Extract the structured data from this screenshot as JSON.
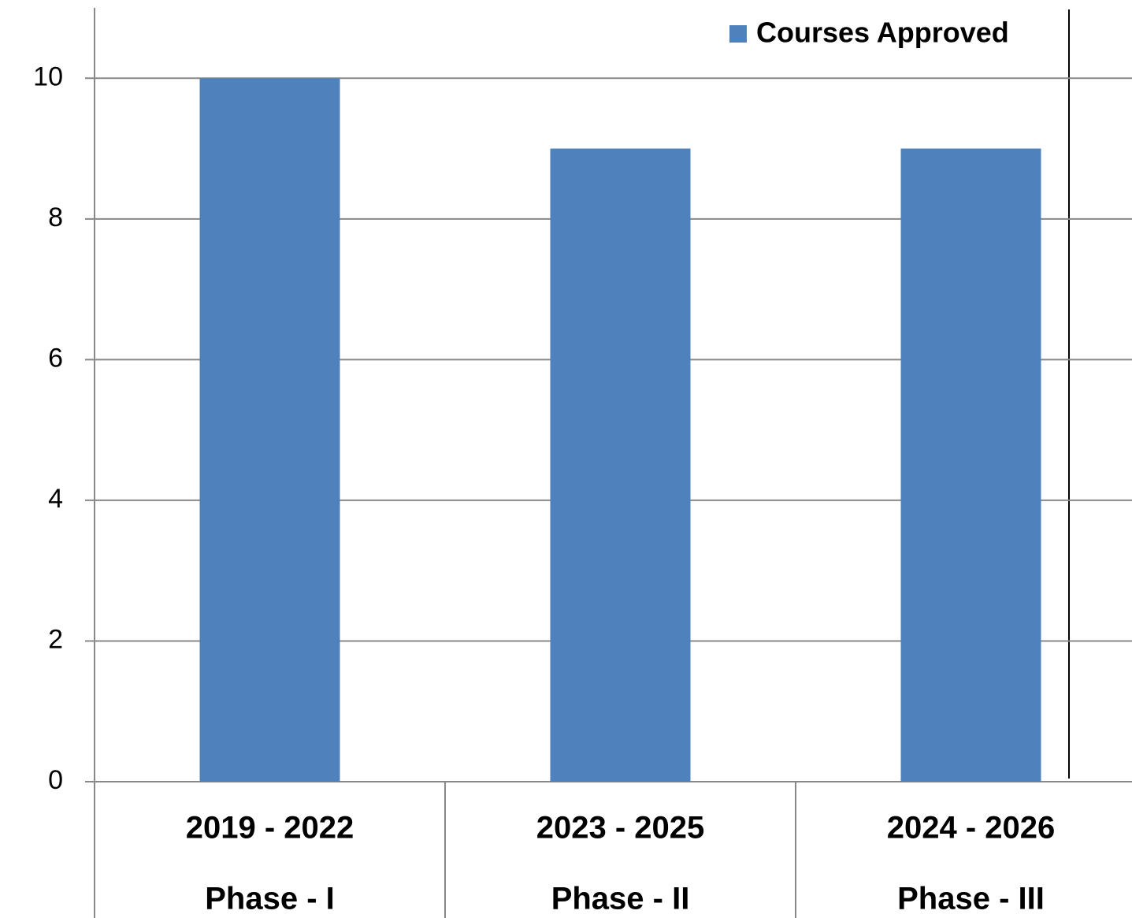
{
  "chart_data": {
    "type": "bar",
    "categories": [
      [
        "2019 - 2022",
        "Phase - I"
      ],
      [
        "2023 - 2025",
        "Phase - II"
      ],
      [
        "2024 - 2026",
        "Phase - III"
      ]
    ],
    "series": [
      {
        "name": "Courses Approved",
        "color": "#4f81bd",
        "values": [
          10,
          9,
          9
        ]
      }
    ],
    "ylim": [
      0,
      11
    ],
    "yticks": [
      0,
      2,
      4,
      6,
      8,
      10
    ],
    "grid": true,
    "legend": "top-right"
  }
}
